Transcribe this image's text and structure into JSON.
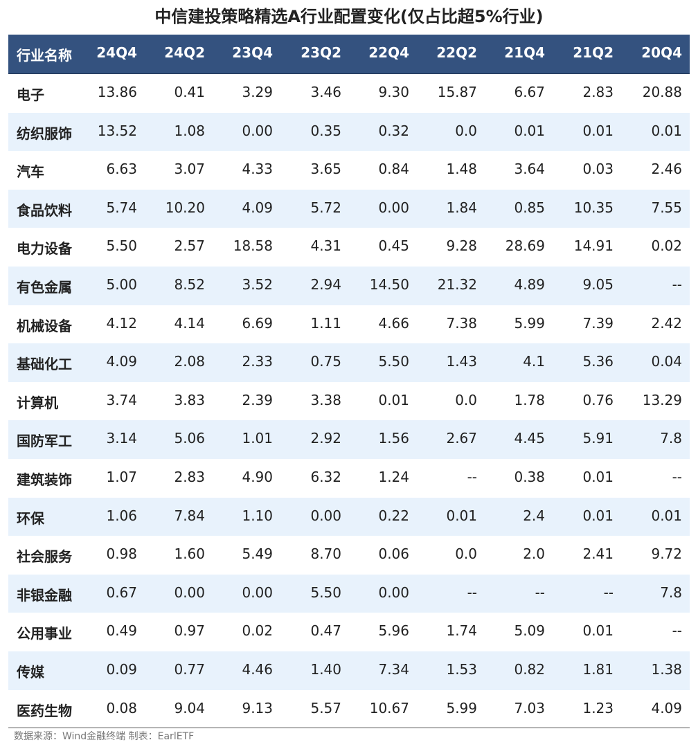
{
  "title": "中信建投策略精选A行业配置变化(仅占比超5%行业)",
  "table": {
    "header": [
      "行业名称",
      "24Q4",
      "24Q2",
      "23Q4",
      "23Q2",
      "22Q4",
      "22Q2",
      "21Q4",
      "21Q2",
      "20Q4"
    ],
    "rows": [
      [
        "电子",
        "13.86",
        "0.41",
        "3.29",
        "3.46",
        "9.30",
        "15.87",
        "6.67",
        "2.83",
        "20.88"
      ],
      [
        "纺织服饰",
        "13.52",
        "1.08",
        "0.00",
        "0.35",
        "0.32",
        "0.0",
        "0.01",
        "0.01",
        "0.01"
      ],
      [
        "汽车",
        "6.63",
        "3.07",
        "4.33",
        "3.65",
        "0.84",
        "1.48",
        "3.64",
        "0.03",
        "2.46"
      ],
      [
        "食品饮料",
        "5.74",
        "10.20",
        "4.09",
        "5.72",
        "0.00",
        "1.84",
        "0.85",
        "10.35",
        "7.55"
      ],
      [
        "电力设备",
        "5.50",
        "2.57",
        "18.58",
        "4.31",
        "0.45",
        "9.28",
        "28.69",
        "14.91",
        "0.02"
      ],
      [
        "有色金属",
        "5.00",
        "8.52",
        "3.52",
        "2.94",
        "14.50",
        "21.32",
        "4.89",
        "9.05",
        "--"
      ],
      [
        "机械设备",
        "4.12",
        "4.14",
        "6.69",
        "1.11",
        "4.66",
        "7.38",
        "5.99",
        "7.39",
        "2.42"
      ],
      [
        "基础化工",
        "4.09",
        "2.08",
        "2.33",
        "0.75",
        "5.50",
        "1.43",
        "4.1",
        "5.36",
        "0.04"
      ],
      [
        "计算机",
        "3.74",
        "3.83",
        "2.39",
        "3.38",
        "0.01",
        "0.0",
        "1.78",
        "0.76",
        "13.29"
      ],
      [
        "国防军工",
        "3.14",
        "5.06",
        "1.01",
        "2.92",
        "1.56",
        "2.67",
        "4.45",
        "5.91",
        "7.8"
      ],
      [
        "建筑装饰",
        "1.07",
        "2.83",
        "4.90",
        "6.32",
        "1.24",
        "--",
        "0.38",
        "0.01",
        "--"
      ],
      [
        "环保",
        "1.06",
        "7.84",
        "1.10",
        "0.00",
        "0.22",
        "0.01",
        "2.4",
        "0.01",
        "0.01"
      ],
      [
        "社会服务",
        "0.98",
        "1.60",
        "5.49",
        "8.70",
        "0.06",
        "0.0",
        "2.0",
        "2.41",
        "9.72"
      ],
      [
        "非银金融",
        "0.67",
        "0.00",
        "0.00",
        "5.50",
        "0.00",
        "--",
        "--",
        "--",
        "7.8"
      ],
      [
        "公用事业",
        "0.49",
        "0.97",
        "0.02",
        "0.47",
        "5.96",
        "1.74",
        "5.09",
        "0.01",
        "--"
      ],
      [
        "传媒",
        "0.09",
        "0.77",
        "4.46",
        "1.40",
        "7.34",
        "1.53",
        "0.82",
        "1.81",
        "1.38"
      ],
      [
        "医药生物",
        "0.08",
        "9.04",
        "9.13",
        "5.57",
        "10.67",
        "5.99",
        "7.03",
        "1.23",
        "4.09"
      ]
    ]
  },
  "source": "数据来源：Wind金融终端 制表：EarlETF"
}
